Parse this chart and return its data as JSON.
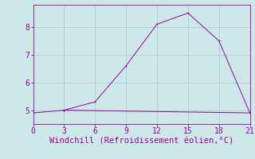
{
  "line1_x": [
    0,
    3,
    6,
    9,
    12,
    15,
    18,
    21
  ],
  "line1_y": [
    4.9,
    5.0,
    5.3,
    6.6,
    8.1,
    8.5,
    7.5,
    4.9
  ],
  "line2_x": [
    3,
    21
  ],
  "line2_y": [
    5.0,
    4.9
  ],
  "line_color": "#990099",
  "bg_color": "#cce8e8",
  "xlabel": "Windchill (Refroidissement éolien,°C)",
  "xlim": [
    0,
    21
  ],
  "ylim": [
    4.5,
    8.8
  ],
  "xticks": [
    0,
    3,
    6,
    9,
    12,
    15,
    18,
    21
  ],
  "yticks": [
    5,
    6,
    7,
    8
  ],
  "grid_color": "#aacece",
  "xlabel_fontsize": 7.5,
  "tick_fontsize": 7,
  "linewidth": 0.7,
  "markersize": 2.0
}
